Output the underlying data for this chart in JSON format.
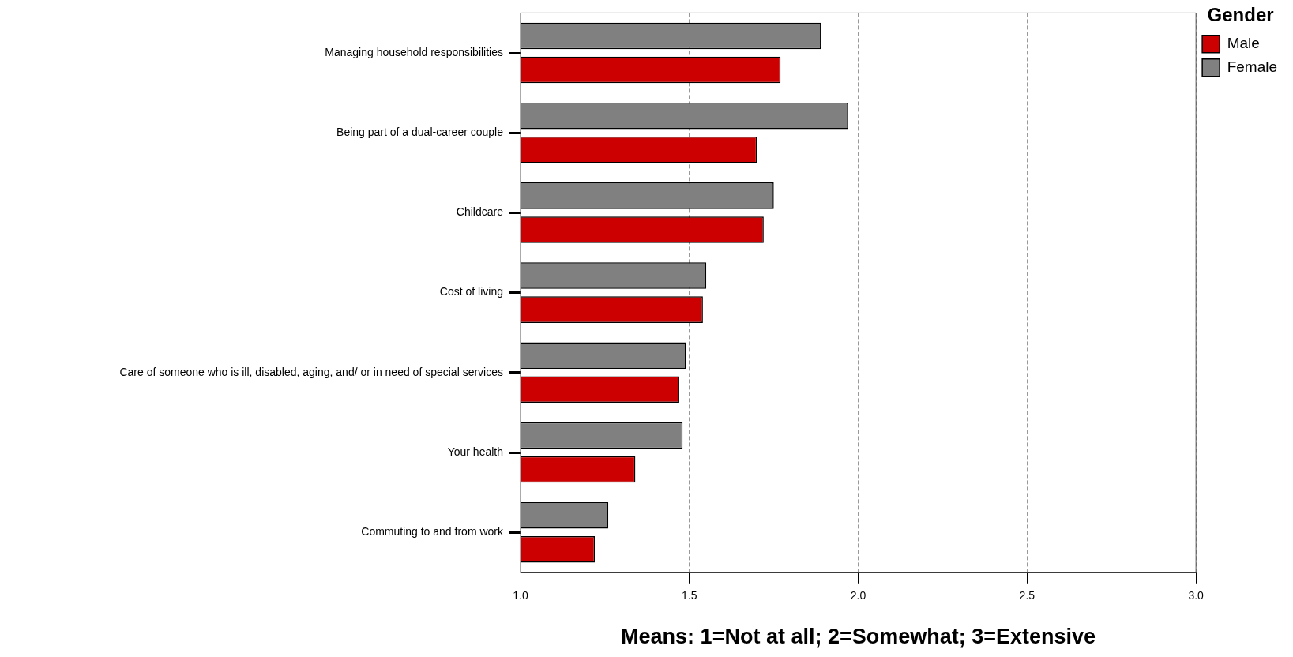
{
  "chart_data": {
    "type": "bar",
    "orientation": "horizontal",
    "categories": [
      "Managing household responsibilities",
      "Being part of a dual-career couple",
      "Childcare",
      "Cost of living",
      "Care of someone who is ill, disabled, aging, and/ or in need of special services",
      "Your health",
      "Commuting to and from work"
    ],
    "series": [
      {
        "name": "Female",
        "color": "#808080",
        "values": [
          1.89,
          1.97,
          1.75,
          1.55,
          1.49,
          1.48,
          1.26
        ]
      },
      {
        "name": "Male",
        "color": "#cc0000",
        "values": [
          1.77,
          1.7,
          1.72,
          1.54,
          1.47,
          1.34,
          1.22
        ]
      }
    ],
    "xlim": [
      1.0,
      3.0
    ],
    "xticks": [
      {
        "value": 1.0,
        "label": "1.0"
      },
      {
        "value": 1.5,
        "label": "1.5"
      },
      {
        "value": 2.0,
        "label": "2.0"
      },
      {
        "value": 2.5,
        "label": "2.5"
      },
      {
        "value": 3.0,
        "label": "3.0"
      }
    ],
    "xlabel": "Means: 1=Not at all; 2=Somewhat; 3=Extensive",
    "grid": "x",
    "legend": "top right",
    "legend_title": "Gender"
  }
}
